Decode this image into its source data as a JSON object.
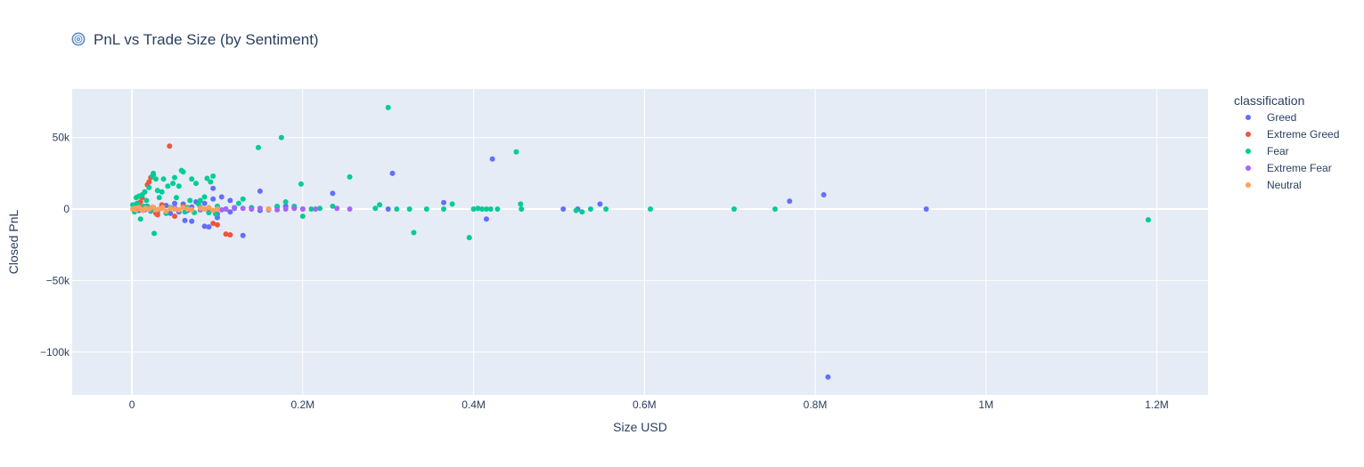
{
  "chart_data": {
    "type": "scatter",
    "title": "PnL vs Trade Size (by Sentiment)",
    "title_icon": "cyclone-icon",
    "xlabel": "Size USD",
    "ylabel": "Closed PnL",
    "xlim": [
      -70000,
      1260000
    ],
    "ylim": [
      -130000,
      84000
    ],
    "x_ticks": [
      {
        "value": 0,
        "label": "0"
      },
      {
        "value": 200000,
        "label": "0.2M"
      },
      {
        "value": 400000,
        "label": "0.4M"
      },
      {
        "value": 600000,
        "label": "0.6M"
      },
      {
        "value": 800000,
        "label": "0.8M"
      },
      {
        "value": 1000000,
        "label": "1M"
      },
      {
        "value": 1200000,
        "label": "1.2M"
      }
    ],
    "y_ticks": [
      {
        "value": 50000,
        "label": "50k"
      },
      {
        "value": 0,
        "label": "0"
      },
      {
        "value": -50000,
        "label": "−50k"
      },
      {
        "value": -100000,
        "label": "−100k"
      }
    ],
    "grid": true,
    "legend_position": "right",
    "legend_title": "classification",
    "series": [
      {
        "name": "Greed",
        "color": "#636efa",
        "x": [
          2000,
          5000,
          8000,
          12000,
          15000,
          18000,
          22000,
          25000,
          30000,
          35000,
          40000,
          45000,
          50000,
          55000,
          60000,
          65000,
          70000,
          75000,
          80000,
          85000,
          90000,
          95000,
          100000,
          105000,
          110000,
          115000,
          120000,
          130000,
          140000,
          150000,
          160000,
          170000,
          180000,
          190000,
          200000,
          235000,
          300000,
          305000,
          365000,
          415000,
          422000,
          505000,
          522000,
          548000,
          770000,
          810000,
          815000,
          930000,
          70000,
          85000,
          95000,
          100000,
          115000,
          150000,
          50000,
          62000,
          90000
        ],
        "y": [
          0,
          500,
          -1000,
          1200,
          -500,
          2000,
          -1500,
          1000,
          -2000,
          800,
          2500,
          -3000,
          4000,
          -2000,
          3500,
          -1000,
          1500,
          5000,
          -500,
          -12000,
          -12500,
          14500,
          -6000,
          8500,
          0,
          -2000,
          500,
          -18500,
          0,
          12500,
          -500,
          1500,
          2000,
          1000,
          0,
          11000,
          0,
          25000,
          4500,
          -7000,
          35000,
          0,
          0,
          3500,
          5500,
          10000,
          -117500,
          0,
          -8500,
          4000,
          7000,
          -3500,
          6000,
          -1000,
          0,
          -8000,
          -2500
        ]
      },
      {
        "name": "Extreme Greed",
        "color": "#ef553b",
        "x": [
          5000,
          8000,
          10000,
          12000,
          15000,
          18000,
          20000,
          22000,
          25000,
          28000,
          30000,
          35000,
          40000,
          44000,
          50000,
          60000,
          80000,
          95000,
          100000,
          110000,
          115000
        ],
        "y": [
          0,
          2000,
          5000,
          8000,
          12000,
          17000,
          19000,
          22000,
          24000,
          -3000,
          -4000,
          3000,
          -2000,
          44000,
          -5000,
          2000,
          1000,
          -10000,
          -11000,
          -17500,
          -18000
        ]
      },
      {
        "name": "Fear",
        "color": "#00cc96",
        "x": [
          1000,
          3000,
          5000,
          6000,
          8000,
          10000,
          12000,
          14000,
          15000,
          17000,
          18000,
          20000,
          22000,
          24000,
          25000,
          26000,
          28000,
          30000,
          32000,
          35000,
          37000,
          40000,
          42000,
          45000,
          48000,
          50000,
          52000,
          55000,
          58000,
          60000,
          62000,
          65000,
          68000,
          70000,
          73000,
          75000,
          78000,
          80000,
          85000,
          88000,
          90000,
          92000,
          95000,
          98000,
          100000,
          110000,
          120000,
          125000,
          130000,
          140000,
          148000,
          150000,
          160000,
          170000,
          175000,
          180000,
          190000,
          198000,
          200000,
          210000,
          220000,
          235000,
          255000,
          285000,
          290000,
          300000,
          310000,
          325000,
          330000,
          345000,
          365000,
          375000,
          395000,
          400000,
          405000,
          410000,
          415000,
          420000,
          428000,
          450000,
          455000,
          456000,
          520000,
          527000,
          537000,
          555000,
          607000,
          705000,
          753000,
          1190000
        ],
        "y": [
          3000,
          -2000,
          8000,
          4000,
          9000,
          -7000,
          10000,
          2000,
          12000,
          6000,
          1500,
          15000,
          -1000,
          23000,
          25000,
          -17000,
          21000,
          13000,
          8000,
          12000,
          21000,
          -3000,
          16000,
          1000,
          18000,
          22000,
          8000,
          16000,
          27000,
          26000,
          -2000,
          1000,
          6000,
          21000,
          -2500,
          18000,
          3500,
          6000,
          8500,
          21500,
          -2500,
          19000,
          23000,
          -3500,
          2000,
          0,
          1000,
          4000,
          7000,
          1000,
          43000,
          500,
          0,
          2000,
          50000,
          5000,
          2000,
          17500,
          -5000,
          0,
          500,
          2000,
          22500,
          500,
          3000,
          71000,
          0,
          0,
          -16500,
          0,
          0,
          3500,
          -20000,
          0,
          500,
          0,
          0,
          0,
          0,
          40000,
          3500,
          0,
          -1000,
          -2000,
          0,
          0,
          0,
          0,
          0,
          -7500
        ]
      },
      {
        "name": "Extreme Fear",
        "color": "#ab63fa",
        "x": [
          5000,
          15000,
          30000,
          50000,
          70000,
          90000,
          105000,
          110000,
          120000,
          130000,
          140000,
          150000,
          160000,
          170000,
          180000,
          190000,
          200000,
          215000,
          240000,
          255000
        ],
        "y": [
          0,
          500,
          -500,
          1000,
          0,
          500,
          -500,
          0,
          1000,
          500,
          0,
          500,
          0,
          -500,
          0,
          500,
          0,
          0,
          500,
          0
        ]
      },
      {
        "name": "Neutral",
        "color": "#ffa15a",
        "x": [
          1000,
          3000,
          5000,
          8000,
          10000,
          13000,
          16000,
          20000,
          24000,
          28000,
          32000,
          36000,
          40000,
          45000,
          50000,
          55000,
          60000,
          65000,
          70000,
          80000,
          85000,
          90000,
          95000,
          100000,
          160000
        ],
        "y": [
          0,
          500,
          -500,
          1000,
          0,
          -1000,
          500,
          0,
          1500,
          -500,
          0,
          1000,
          -1500,
          500,
          0,
          -500,
          1000,
          0,
          -500,
          500,
          0,
          1000,
          -1000,
          0,
          0
        ]
      }
    ]
  }
}
